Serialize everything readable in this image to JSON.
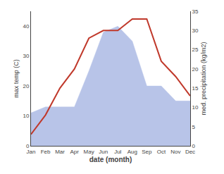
{
  "chart_data": {
    "type": "area",
    "xlabel": "date (month)",
    "ylabel": "max temp (C)",
    "y2label": "med. precipitation (kg/m2)",
    "categories": [
      "Jan",
      "Feb",
      "Mar",
      "Apr",
      "May",
      "Jun",
      "Jul",
      "Aug",
      "Sep",
      "Oct",
      "Nov",
      "Dec"
    ],
    "series": [
      {
        "type": "area",
        "color": "#b8c4e8",
        "values": [
          11,
          13,
          13,
          13,
          25,
          38,
          40,
          35,
          20,
          20,
          15,
          15
        ]
      },
      {
        "type": "line",
        "color": "#c0392b",
        "axis": "y2",
        "values": [
          3,
          8,
          15,
          20,
          28,
          30,
          30,
          33,
          33,
          22,
          18,
          13
        ]
      }
    ],
    "ylim": [
      0,
      45
    ],
    "yticks": [
      0,
      10,
      20,
      30,
      40
    ],
    "y2lim": [
      0,
      35
    ],
    "y2ticks": [
      0,
      5,
      10,
      15,
      20,
      25,
      30,
      35
    ],
    "grid": false
  }
}
